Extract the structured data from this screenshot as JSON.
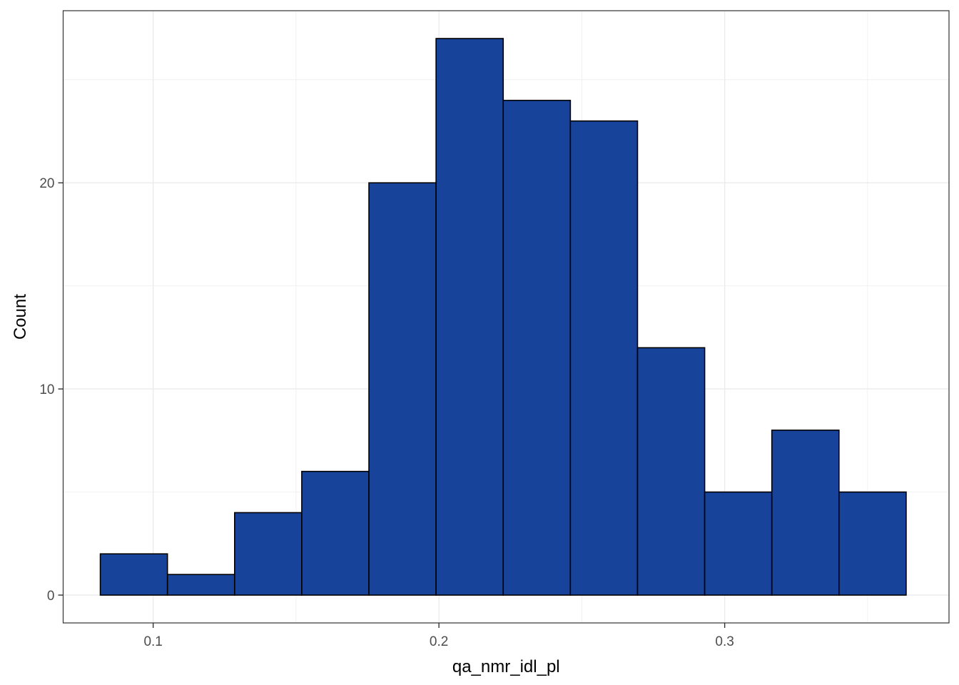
{
  "chart_data": {
    "type": "bar",
    "subtype": "histogram",
    "xlabel": "qa_nmr_idl_pl",
    "ylabel": "Count",
    "xlim": [
      0.0685,
      0.3785
    ],
    "ylim": [
      -1.35,
      28.35
    ],
    "x_ticks": [
      0.1,
      0.2,
      0.3
    ],
    "x_tick_labels": [
      "0.1",
      "0.2",
      "0.3"
    ],
    "y_ticks": [
      0,
      10,
      20
    ],
    "y_tick_labels": [
      "0",
      "10",
      "20"
    ],
    "bins": [
      {
        "x0": 0.0815,
        "x1": 0.105,
        "count": 2
      },
      {
        "x0": 0.105,
        "x1": 0.1285,
        "count": 1
      },
      {
        "x0": 0.1285,
        "x1": 0.152,
        "count": 4
      },
      {
        "x0": 0.152,
        "x1": 0.1755,
        "count": 6
      },
      {
        "x0": 0.1755,
        "x1": 0.199,
        "count": 20
      },
      {
        "x0": 0.199,
        "x1": 0.2225,
        "count": 27
      },
      {
        "x0": 0.2225,
        "x1": 0.246,
        "count": 24
      },
      {
        "x0": 0.246,
        "x1": 0.2695,
        "count": 23
      },
      {
        "x0": 0.2695,
        "x1": 0.293,
        "count": 12
      },
      {
        "x0": 0.293,
        "x1": 0.3165,
        "count": 5
      },
      {
        "x0": 0.3165,
        "x1": 0.34,
        "count": 8
      },
      {
        "x0": 0.34,
        "x1": 0.3635,
        "count": 5
      }
    ],
    "bar_fill": "#18439a",
    "bar_outline": "#000000",
    "grid": true,
    "grid_color": "#ebebeb",
    "panel_border_color": "#333333",
    "background": "#ffffff"
  }
}
